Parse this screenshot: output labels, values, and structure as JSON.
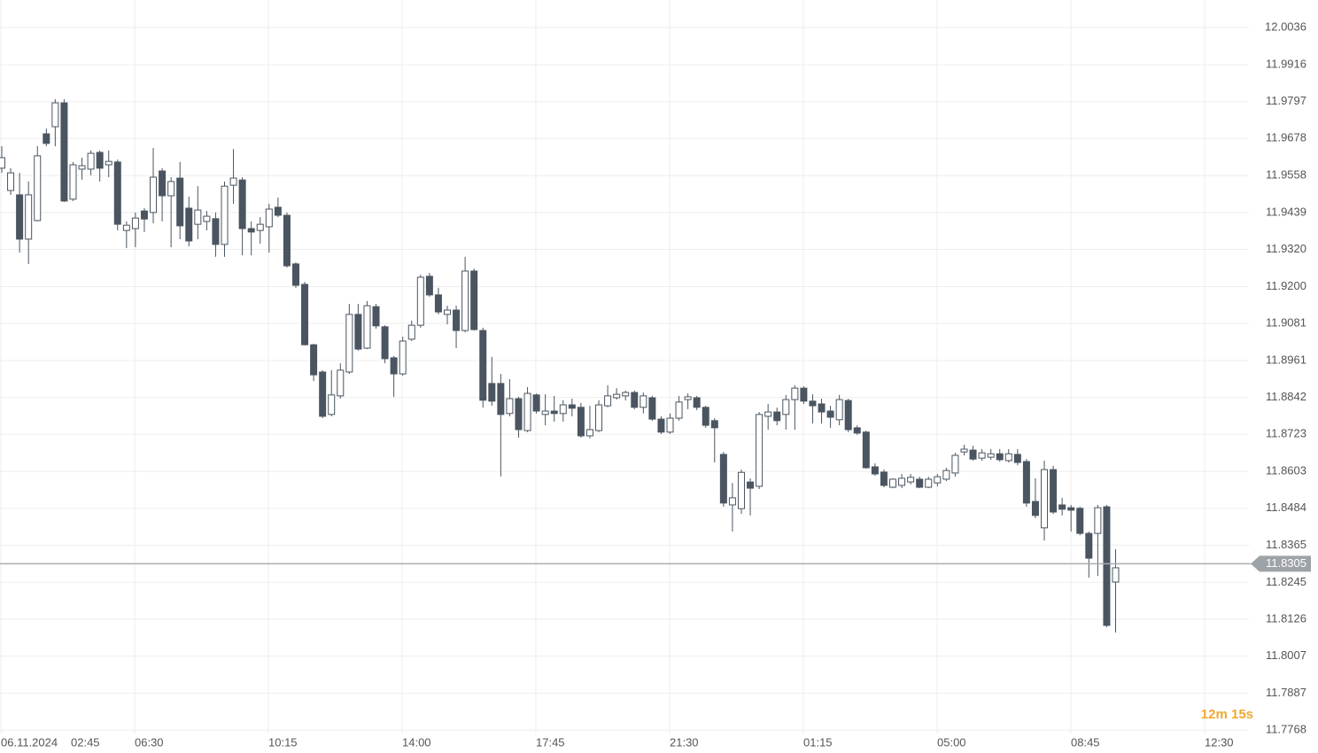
{
  "chart_data": {
    "type": "candlestick",
    "date_label": "06.11.2024",
    "xticks": [
      "02:45",
      "06:30",
      "10:15",
      "14:00",
      "17:45",
      "21:30",
      "01:15",
      "05:00",
      "08:45",
      "12:30"
    ],
    "ylim": [
      11.7757,
      12.0125
    ],
    "yticks": [
      12.0036,
      11.9916,
      11.9797,
      11.9678,
      11.9558,
      11.9439,
      {
        "value": 11.932,
        "label": "11.9320"
      },
      {
        "value": 11.92,
        "label": "11.9200"
      },
      11.9081,
      11.8961,
      11.8842,
      11.8723,
      11.8603,
      11.8484,
      11.8365,
      11.8245,
      11.8126,
      11.8007,
      11.7887,
      11.7768
    ],
    "grid": true,
    "up_color": "#ffffff",
    "down_color": "#4a5561",
    "last_price": 11.8305,
    "countdown": "12m 15s",
    "open": [
      11.9582,
      11.951,
      11.9496,
      11.9353,
      11.9413,
      11.9693,
      11.9716,
      11.9793,
      11.9482,
      11.9579,
      11.9579,
      11.9633,
      11.9593,
      11.9602,
      11.9381,
      11.9387,
      11.9444,
      11.9439,
      11.9573,
      11.9493,
      11.955,
      11.9453,
      11.9401,
      11.941,
      11.9419,
      11.9336,
      11.9527,
      11.9544,
      11.9387,
      11.9381,
      11.9393,
      11.9456,
      11.943,
      11.9273,
      11.9207,
      11.9012,
      11.8924,
      11.8787,
      11.8847,
      11.8924,
      11.911,
      11.9001,
      11.9135,
      11.907,
      11.897,
      11.8918,
      11.903,
      11.9075,
      11.9233,
      11.9173,
      11.911,
      11.9124,
      11.9058,
      11.925,
      11.9058,
      11.8887,
      11.8887,
      11.879,
      11.8838,
      11.8735,
      11.885,
      11.8787,
      11.8798,
      11.879,
      11.8818,
      11.881,
      11.8718,
      11.8735,
      11.8815,
      11.8841,
      11.8847,
      11.8858,
      11.881,
      11.8841,
      11.8772,
      11.873,
      11.8775,
      11.8835,
      11.8841,
      11.881,
      11.8767,
      11.8658,
      11.8495,
      11.8483,
      11.8569,
      11.8555,
      11.8781,
      11.8795,
      11.8787,
      11.8835,
      11.8872,
      11.883,
      11.8821,
      11.8798,
      11.877,
      11.8832,
      11.8744,
      11.873,
      11.8618,
      11.8601,
      11.8552,
      11.8558,
      11.8569,
      11.8578,
      11.8552,
      11.8566,
      11.8578,
      11.8598,
      11.8666,
      11.8672,
      11.8646,
      11.8649,
      11.866,
      11.8638,
      11.8658,
      11.8635,
      11.8506,
      11.8421,
      11.8609,
      11.8495,
      11.8486,
      11.8484,
      11.8403,
      11.8403,
      11.8489,
      11.8246
    ],
    "high": [
      11.9653,
      11.9582,
      11.9567,
      11.9539,
      11.9653,
      11.971,
      11.9805,
      11.9805,
      11.9602,
      11.9616,
      11.9639,
      11.9639,
      11.9639,
      11.961,
      11.941,
      11.9439,
      11.9453,
      11.9647,
      11.9582,
      11.9553,
      11.9602,
      11.949,
      11.9524,
      11.9444,
      11.9439,
      11.9539,
      11.9644,
      11.9553,
      11.941,
      11.9424,
      11.9467,
      11.9487,
      11.9439,
      11.9278,
      11.9215,
      11.9015,
      11.893,
      11.893,
      11.8952,
      11.9144,
      11.9144,
      11.9153,
      11.9144,
      11.9075,
      11.8976,
      11.9038,
      11.909,
      11.9238,
      11.9244,
      11.9196,
      11.9138,
      11.9138,
      11.9296,
      11.9258,
      11.9067,
      11.8973,
      11.8918,
      11.8901,
      11.8844,
      11.8875,
      11.8855,
      11.8852,
      11.8847,
      11.8833,
      11.8838,
      11.8824,
      11.8815,
      11.8833,
      11.8881,
      11.8872,
      11.8864,
      11.8864,
      11.8858,
      11.8847,
      11.8781,
      11.879,
      11.8847,
      11.8855,
      11.8847,
      11.8815,
      11.8775,
      11.8666,
      11.8566,
      11.8609,
      11.8581,
      11.8795,
      11.8821,
      11.8809,
      11.885,
      11.8881,
      11.8878,
      11.8852,
      11.8838,
      11.8815,
      11.885,
      11.8838,
      11.8752,
      11.8735,
      11.8629,
      11.8609,
      11.8581,
      11.8595,
      11.8595,
      11.8586,
      11.8586,
      11.8595,
      11.8615,
      11.8663,
      11.8689,
      11.8686,
      11.8675,
      11.8675,
      11.8675,
      11.8675,
      11.8675,
      11.8643,
      11.8581,
      11.8638,
      11.8621,
      11.8518,
      11.8495,
      11.8489,
      11.8409,
      11.8495,
      11.8495,
      11.8352
    ],
    "low": [
      11.9567,
      11.9496,
      11.931,
      11.9273,
      11.941,
      11.9653,
      11.9653,
      11.9473,
      11.9476,
      11.9545,
      11.9559,
      11.9539,
      11.9553,
      11.9381,
      11.9324,
      11.9327,
      11.9376,
      11.9404,
      11.941,
      11.9327,
      11.9353,
      11.933,
      11.9353,
      11.9381,
      11.9296,
      11.9296,
      11.9467,
      11.9301,
      11.9301,
      11.9338,
      11.931,
      11.9424,
      11.9261,
      11.9196,
      11.901,
      11.8895,
      11.8775,
      11.8781,
      11.8838,
      11.8918,
      11.8993,
      11.8998,
      11.9064,
      11.8952,
      11.8844,
      11.8912,
      11.9024,
      11.9067,
      11.9167,
      11.911,
      11.9078,
      11.9001,
      11.9052,
      11.9058,
      11.8809,
      11.8815,
      11.8587,
      11.8781,
      11.8712,
      11.873,
      11.879,
      11.8752,
      11.8764,
      11.8764,
      11.8781,
      11.8712,
      11.871,
      11.873,
      11.881,
      11.8835,
      11.8832,
      11.8804,
      11.879,
      11.8767,
      11.8724,
      11.8724,
      11.8767,
      11.8804,
      11.8801,
      11.8744,
      11.8632,
      11.8489,
      11.8409,
      11.8466,
      11.8461,
      11.8546,
      11.8738,
      11.8752,
      11.8738,
      11.8738,
      11.8821,
      11.8758,
      11.8758,
      11.8744,
      11.8752,
      11.873,
      11.8721,
      11.8612,
      11.8589,
      11.8552,
      11.8549,
      11.8549,
      11.8561,
      11.8549,
      11.8549,
      11.8555,
      11.8572,
      11.8586,
      11.8655,
      11.8638,
      11.8638,
      11.8641,
      11.8635,
      11.8632,
      11.8623,
      11.8489,
      11.8452,
      11.838,
      11.8466,
      11.8461,
      11.8409,
      11.8397,
      11.826,
      11.8266,
      11.81,
      11.8083
    ],
    "close": [
      11.9616,
      11.9567,
      11.9353,
      11.9496,
      11.9622,
      11.9662,
      11.9793,
      11.9476,
      11.9593,
      11.959,
      11.963,
      11.9582,
      11.9604,
      11.9401,
      11.9398,
      11.9421,
      11.9418,
      11.9553,
      11.9493,
      11.9539,
      11.9396,
      11.9347,
      11.9447,
      11.9427,
      11.9336,
      11.9524,
      11.955,
      11.9387,
      11.9376,
      11.9401,
      11.945,
      11.943,
      11.9267,
      11.9204,
      11.9012,
      11.8915,
      11.8781,
      11.885,
      11.893,
      11.911,
      11.8998,
      11.9138,
      11.9073,
      11.8967,
      11.8918,
      11.9024,
      11.9075,
      11.923,
      11.9173,
      11.9118,
      11.9124,
      11.9058,
      11.925,
      11.9061,
      11.8833,
      11.883,
      11.8787,
      11.8838,
      11.8738,
      11.8855,
      11.8798,
      11.8798,
      11.879,
      11.8818,
      11.8807,
      11.8718,
      11.8738,
      11.8818,
      11.8847,
      11.8852,
      11.8858,
      11.881,
      11.8847,
      11.8772,
      11.873,
      11.8775,
      11.8827,
      11.8844,
      11.881,
      11.8752,
      11.8744,
      11.8501,
      11.8518,
      11.86,
      11.8549,
      11.8787,
      11.8795,
      11.8767,
      11.8835,
      11.8872,
      11.883,
      11.8815,
      11.8795,
      11.8778,
      11.8835,
      11.8738,
      11.8727,
      11.8615,
      11.8595,
      11.8558,
      11.8578,
      11.8581,
      11.8584,
      11.8552,
      11.8578,
      11.8586,
      11.8606,
      11.8655,
      11.8675,
      11.8643,
      11.8663,
      11.866,
      11.8641,
      11.866,
      11.8632,
      11.8501,
      11.8461,
      11.8609,
      11.8472,
      11.8481,
      11.8478,
      11.8403,
      11.8323,
      11.8486,
      11.8106,
      11.8292
    ]
  }
}
